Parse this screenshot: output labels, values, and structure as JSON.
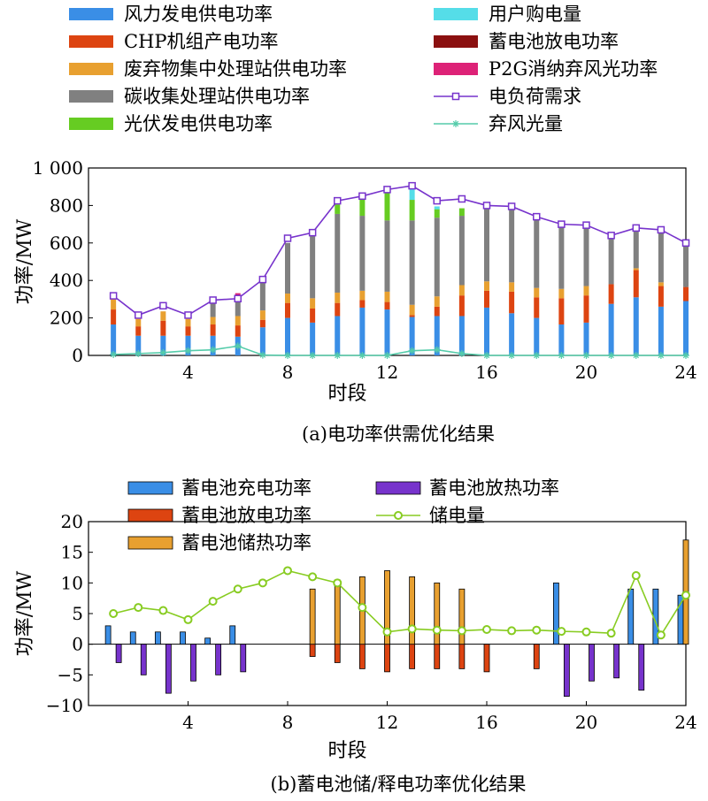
{
  "chart_data": [
    {
      "type": "bar",
      "stacked": true,
      "caption": "(a)电功率供需优化结果",
      "xlabel": "时段",
      "ylabel": "功率/MW",
      "ylim": [
        0,
        1000
      ],
      "ytick_labels": [
        "0",
        "200",
        "400",
        "600",
        "800",
        "1 000"
      ],
      "yticks": [
        0,
        200,
        400,
        600,
        800,
        1000
      ],
      "xtick_labels": [
        "4",
        "8",
        "12",
        "16",
        "20",
        "24"
      ],
      "xticks": [
        4,
        8,
        12,
        16,
        20,
        24
      ],
      "xlim": [
        0,
        24
      ],
      "x": [
        1,
        2,
        3,
        4,
        5,
        6,
        7,
        8,
        9,
        10,
        11,
        12,
        13,
        14,
        15,
        16,
        17,
        18,
        19,
        20,
        21,
        22,
        23,
        24
      ],
      "legend_columns": 2,
      "series": [
        {
          "name": "风力发电供电功率",
          "color": "#3a8ee6",
          "values": [
            165,
            105,
            105,
            105,
            105,
            100,
            150,
            200,
            175,
            210,
            255,
            245,
            205,
            210,
            210,
            255,
            225,
            200,
            165,
            175,
            275,
            310,
            260,
            290
          ]
        },
        {
          "name": "CHP机组产电功率",
          "color": "#dd4411",
          "values": [
            80,
            50,
            80,
            50,
            60,
            60,
            40,
            80,
            75,
            70,
            40,
            40,
            10,
            50,
            110,
            90,
            115,
            110,
            140,
            145,
            105,
            145,
            110,
            75
          ]
        },
        {
          "name": "废弃物集中处理站供电功率",
          "color": "#e8a030",
          "values": [
            60,
            40,
            50,
            40,
            40,
            50,
            50,
            50,
            55,
            55,
            50,
            55,
            55,
            55,
            55,
            50,
            50,
            50,
            50,
            50,
            0,
            10,
            20,
            0
          ]
        },
        {
          "name": "碳收集处理站供电功率",
          "color": "#808080",
          "values": [
            0,
            0,
            0,
            0,
            80,
            80,
            165,
            270,
            340,
            420,
            400,
            380,
            450,
            420,
            370,
            400,
            400,
            375,
            340,
            320,
            250,
            210,
            270,
            220
          ]
        },
        {
          "name": "光伏发电供电功率",
          "color": "#66cc22",
          "values": [
            0,
            0,
            0,
            0,
            0,
            0,
            0,
            0,
            0,
            50,
            90,
            150,
            110,
            45,
            40,
            10,
            0,
            0,
            0,
            0,
            0,
            0,
            0,
            0
          ]
        },
        {
          "name": "用户购电量",
          "color": "#55dde8",
          "values": [
            0,
            0,
            0,
            0,
            0,
            0,
            0,
            0,
            0,
            0,
            0,
            0,
            85,
            15,
            0,
            0,
            0,
            0,
            0,
            0,
            0,
            0,
            0,
            0
          ]
        },
        {
          "name": "蓄电池放电功率",
          "color": "#8b1010",
          "values": [
            0,
            0,
            0,
            0,
            3,
            4,
            0,
            0,
            0,
            0,
            0,
            0,
            0,
            0,
            0,
            0,
            0,
            0,
            0,
            0,
            0,
            0,
            0,
            0
          ]
        },
        {
          "name": "P2G消纳弃风光功率",
          "color": "#dd2277",
          "values": [
            0,
            0,
            0,
            0,
            15,
            38,
            0,
            0,
            0,
            0,
            0,
            0,
            0,
            0,
            0,
            0,
            0,
            0,
            0,
            0,
            0,
            0,
            0,
            0
          ]
        }
      ],
      "lines": [
        {
          "name": "电负荷需求",
          "color": "#7733cc",
          "marker": "square",
          "values": [
            318,
            215,
            265,
            215,
            295,
            303,
            405,
            625,
            655,
            825,
            850,
            885,
            905,
            825,
            835,
            800,
            795,
            740,
            700,
            695,
            640,
            680,
            670,
            600
          ]
        },
        {
          "name": "弃风光量",
          "color": "#55ccaa",
          "marker": "star",
          "values": [
            5,
            10,
            15,
            25,
            30,
            50,
            2,
            0,
            0,
            0,
            0,
            0,
            25,
            30,
            10,
            0,
            0,
            0,
            0,
            0,
            0,
            0,
            0,
            0
          ]
        }
      ]
    },
    {
      "type": "bar",
      "caption": "(b)蓄电池储/释电功率优化结果",
      "xlabel": "时段",
      "ylabel": "功率/MW",
      "ylim": [
        -10,
        20
      ],
      "ytick_labels": [
        "−10",
        "−5",
        "0",
        "5",
        "10",
        "15",
        "20"
      ],
      "yticks": [
        -10,
        -5,
        0,
        5,
        10,
        15,
        20
      ],
      "xtick_labels": [
        "4",
        "8",
        "12",
        "16",
        "20",
        "24"
      ],
      "xticks": [
        4,
        8,
        12,
        16,
        20,
        24
      ],
      "xlim": [
        0,
        24
      ],
      "x": [
        1,
        2,
        3,
        4,
        5,
        6,
        7,
        8,
        9,
        10,
        11,
        12,
        13,
        14,
        15,
        16,
        17,
        18,
        19,
        20,
        21,
        22,
        23,
        24
      ],
      "legend_columns": 2,
      "series": [
        {
          "name": "蓄电池充电功率",
          "color": "#3a8ee6",
          "offset": -1,
          "values": [
            3,
            2,
            2,
            2,
            1,
            3,
            0,
            0,
            0,
            0,
            0,
            0,
            0,
            0,
            0,
            0,
            0,
            0,
            10,
            0,
            0,
            9,
            9,
            8
          ]
        },
        {
          "name": "蓄电池放电功率",
          "color": "#dd4411",
          "offset": 0,
          "values": [
            0,
            0,
            0,
            0,
            0,
            0,
            0,
            0,
            -2,
            -3,
            -4,
            -4.5,
            -4,
            -4,
            -4,
            -4.5,
            0,
            -4,
            0,
            0,
            0,
            0,
            0,
            0
          ]
        },
        {
          "name": "蓄电池储热功率",
          "color": "#e8a030",
          "offset": 0,
          "values": [
            0,
            0,
            0,
            0,
            0,
            0,
            0,
            0,
            9,
            10.5,
            11,
            12,
            11,
            10,
            9,
            0,
            0,
            0,
            0,
            0,
            0,
            0,
            0,
            17
          ]
        },
        {
          "name": "蓄电池放热功率",
          "color": "#7733cc",
          "offset": 1,
          "values": [
            -3,
            -5,
            -8,
            -6,
            -5,
            -4.5,
            0,
            0,
            0,
            0,
            0,
            0,
            0,
            0,
            0,
            0,
            0,
            0,
            -8.5,
            -6,
            -5.5,
            -7.5,
            0,
            0
          ]
        }
      ],
      "lines": [
        {
          "name": "储电量",
          "color": "#88cc22",
          "marker": "circle",
          "values": [
            5,
            6,
            5.5,
            4,
            7,
            9,
            10,
            12,
            11,
            10,
            6,
            2,
            2.5,
            2.3,
            2.2,
            2.4,
            2.2,
            2.3,
            2.1,
            2,
            1.8,
            11.2,
            1.5,
            8
          ]
        }
      ]
    }
  ]
}
